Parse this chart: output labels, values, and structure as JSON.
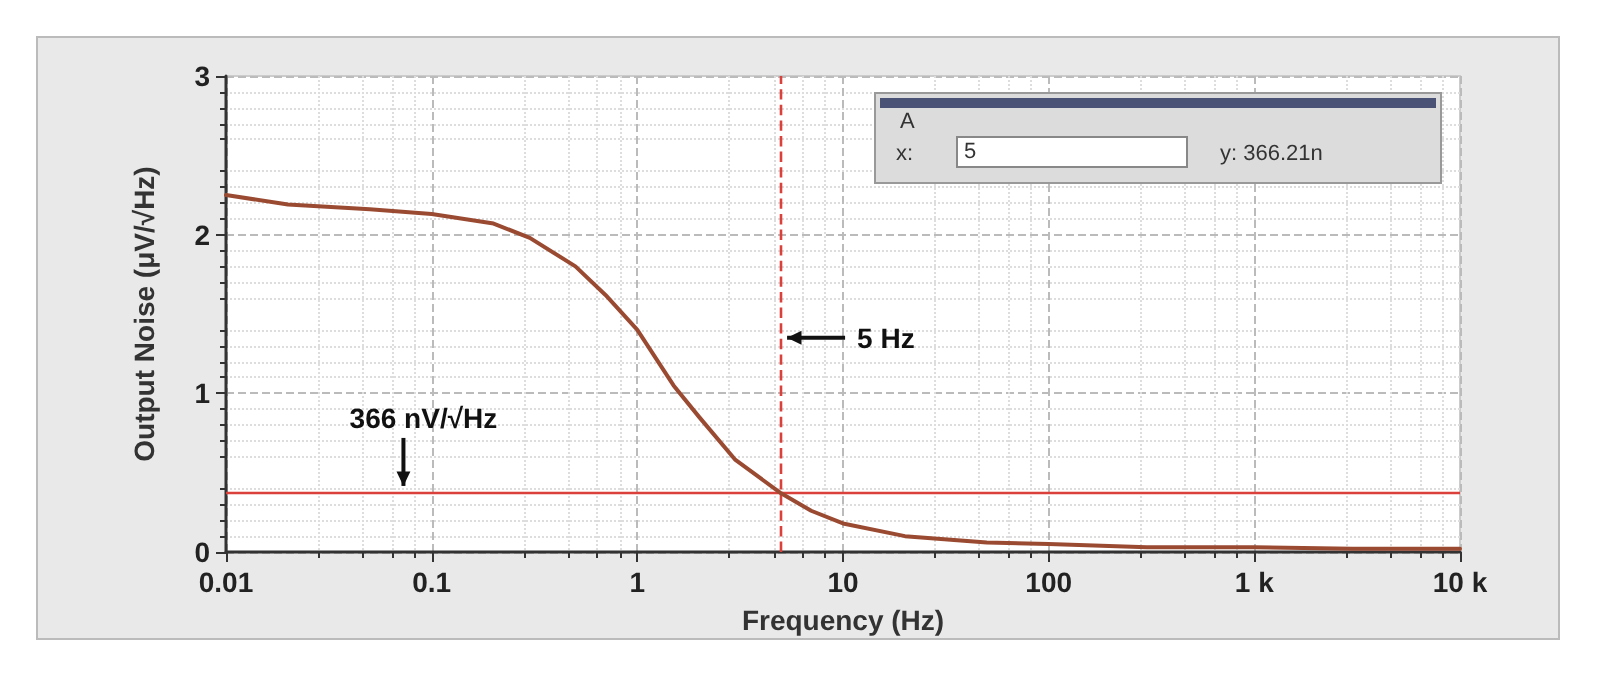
{
  "chart_data": {
    "type": "line",
    "xlabel": "Frequency (Hz)",
    "ylabel": "Output Noise (μV/√Hz)",
    "x": [
      0.01,
      0.02,
      0.05,
      0.1,
      0.2,
      0.3,
      0.5,
      0.7,
      1,
      1.5,
      2,
      3,
      5,
      7,
      10,
      20,
      50,
      100,
      300,
      1000,
      3000,
      10000
    ],
    "series": [
      {
        "color": "#9b4a32",
        "values": [
          2.25,
          2.19,
          2.16,
          2.13,
          2.07,
          1.98,
          1.8,
          1.62,
          1.4,
          1.05,
          0.85,
          0.58,
          0.37,
          0.26,
          0.18,
          0.1,
          0.06,
          0.05,
          0.03,
          0.03,
          0.02,
          0.02
        ]
      }
    ],
    "log": "x",
    "xlim": [
      0.01,
      10000
    ],
    "xticks": [
      0.01,
      0.1,
      1,
      10,
      100,
      {
        "value": 1000,
        "label": "1 k"
      },
      {
        "value": 10000,
        "label": "10 k"
      }
    ],
    "ylim": [
      0,
      3
    ],
    "yticks": [
      0,
      1,
      2,
      3
    ],
    "grid": true,
    "marker": "none",
    "ref_lines": [
      {
        "axis": "y",
        "value": 0.366,
        "color": "#d9413a",
        "line_style": "solid",
        "label": "366 nV/√Hz"
      },
      {
        "axis": "x",
        "value": 5,
        "color": "#d9413a",
        "line_style": "dashed",
        "label": "5 Hz"
      }
    ],
    "annotations": [
      "A",
      "x:",
      "5",
      "y: 366.21n"
    ]
  }
}
